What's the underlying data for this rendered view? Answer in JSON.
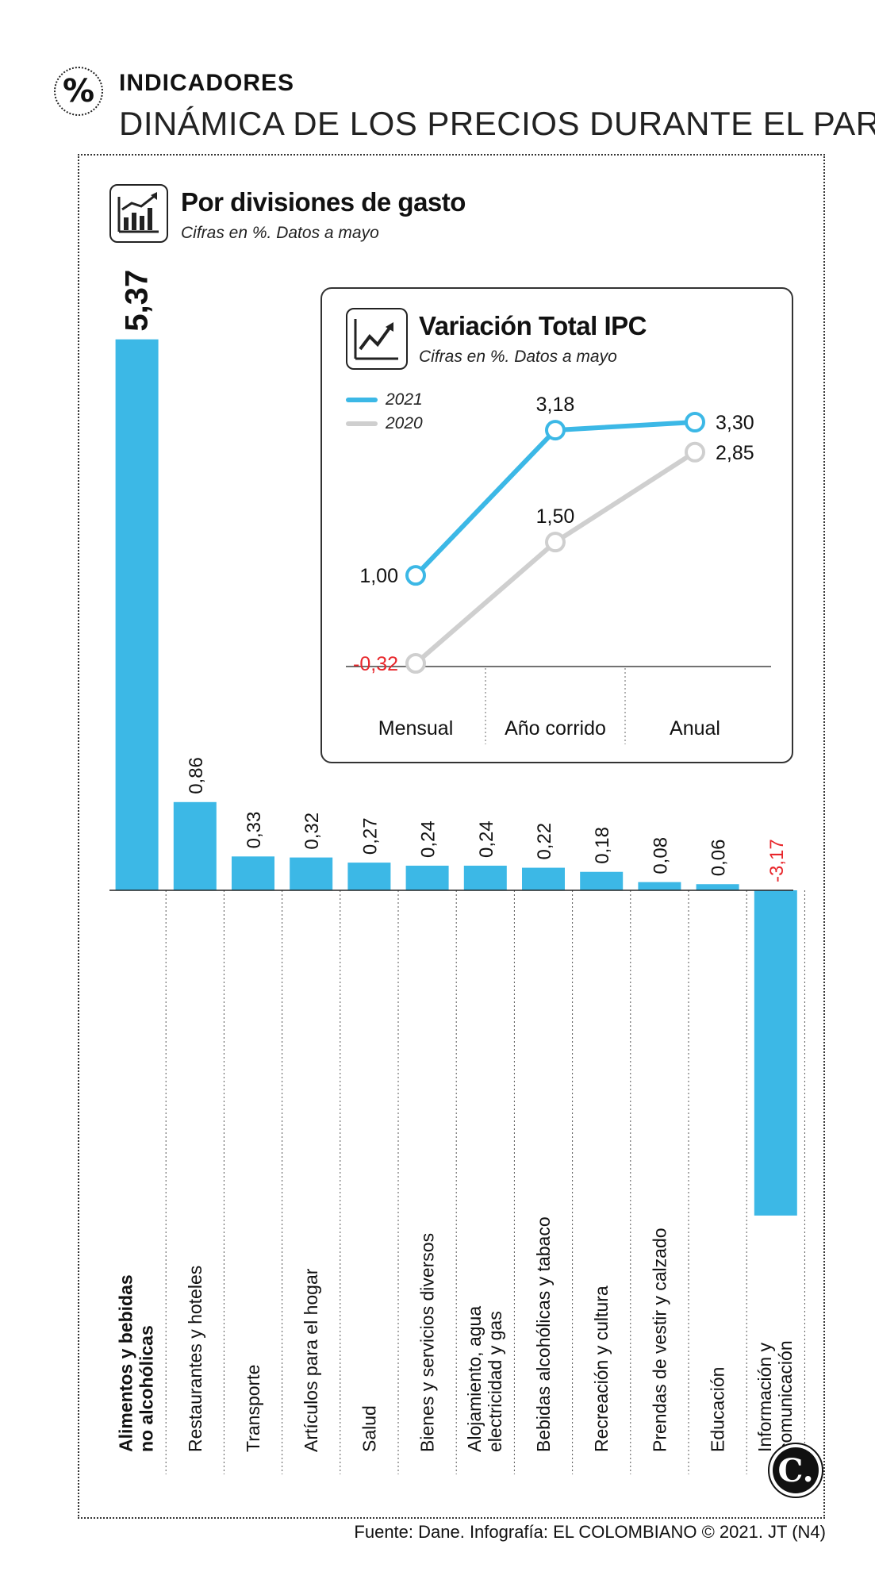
{
  "header": {
    "badge": "%",
    "kicker": "INDICADORES",
    "headline": "DINÁMICA DE LOS PRECIOS DURANTE EL PARO"
  },
  "section": {
    "title": "Por divisiones de gasto",
    "subtitle": "Cifras en %. Datos a mayo"
  },
  "inset": {
    "title": "Variación Total IPC",
    "subtitle": "Cifras en %. Datos a mayo",
    "legend": [
      {
        "label": "2021",
        "color": "#3cb8e6"
      },
      {
        "label": "2020",
        "color": "#cfcfcf"
      }
    ]
  },
  "chart_data": [
    {
      "type": "bar",
      "title": "Por divisiones de gasto",
      "subtitle": "Cifras en %. Datos a mayo",
      "categories": [
        "Alimentos y bebidas no alcohólicas",
        "Restaurantes y hoteles",
        "Transporte",
        "Artículos para el hogar",
        "Salud",
        "Bienes y servicios diversos",
        "Alojamiento, agua electricidad y gas",
        "Bebidas alcohólicas y tabaco",
        "Recreación y cultura",
        "Prendas de vestir y calzado",
        "Educación",
        "Información y comunicación"
      ],
      "values": [
        5.37,
        0.86,
        0.33,
        0.32,
        0.27,
        0.24,
        0.24,
        0.22,
        0.18,
        0.08,
        0.06,
        -3.17
      ],
      "labels": [
        "5,37",
        "0,86",
        "0,33",
        "0,32",
        "0,27",
        "0,24",
        "0,24",
        "0,22",
        "0,18",
        "0,08",
        "0,06",
        "-3,17"
      ],
      "bar_color": "#3cb8e6",
      "negative_label_color": "#e8262b"
    },
    {
      "type": "line",
      "title": "Variación Total IPC",
      "subtitle": "Cifras en %. Datos a mayo",
      "categories": [
        "Mensual",
        "Año corrido",
        "Anual"
      ],
      "series": [
        {
          "name": "2021",
          "values": [
            1.0,
            3.18,
            3.3
          ],
          "labels": [
            "1,00",
            "3,18",
            "3,30"
          ],
          "color": "#3cb8e6"
        },
        {
          "name": "2020",
          "values": [
            -0.32,
            1.5,
            2.85
          ],
          "labels": [
            "-0,32",
            "1,50",
            "2,85"
          ],
          "color": "#cfcfcf"
        }
      ],
      "negative_label_color": "#e8262b"
    }
  ],
  "footer": {
    "source": "Fuente: Dane. Infografía: EL COLOMBIANO © 2021. JT (N4)",
    "logo": "C."
  }
}
